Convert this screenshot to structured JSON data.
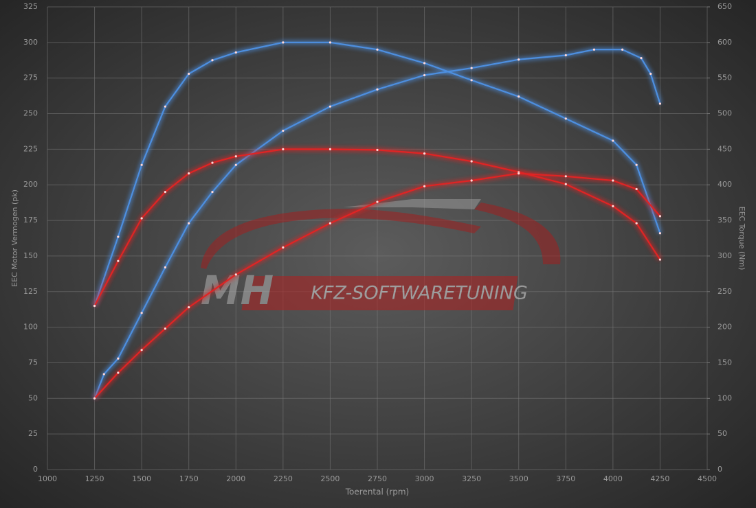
{
  "chart_data": {
    "type": "line",
    "xlabel": "Toerental (rpm)",
    "ylabel": "EEC Motor Vermogen (pk)",
    "y2label": "EEC Torque (Nm)",
    "annotations": [
      "MH",
      "KFZ-SOFTWARETUNING"
    ],
    "xlim": [
      1000,
      4500
    ],
    "xticks": [
      1000,
      1250,
      1500,
      1750,
      2000,
      2250,
      2500,
      2750,
      3000,
      3250,
      3500,
      3750,
      4000,
      4250,
      4500
    ],
    "ylim": [
      0,
      325
    ],
    "yticks": [
      0,
      25,
      50,
      75,
      100,
      125,
      150,
      175,
      200,
      225,
      250,
      275,
      300,
      325
    ],
    "y2lim": [
      0,
      650
    ],
    "y2ticks": [
      0,
      50,
      100,
      150,
      200,
      250,
      300,
      350,
      400,
      450,
      500,
      550,
      600,
      650
    ],
    "grid": true,
    "series": [
      {
        "color": "#4d8fe0",
        "axis": "y2",
        "x": [
          1250,
          1375,
          1500,
          1625,
          1750,
          1875,
          2000,
          2250,
          2500,
          2750,
          3000,
          3250,
          3500,
          3750,
          4000,
          4125,
          4250
        ],
        "values": [
          230,
          327,
          428,
          510,
          556,
          575,
          586,
          600,
          600,
          590,
          571,
          547,
          524,
          493,
          462,
          428,
          332
        ]
      },
      {
        "color": "#4d8fe0",
        "axis": "y",
        "x": [
          1250,
          1300,
          1375,
          1500,
          1625,
          1750,
          1875,
          2000,
          2250,
          2500,
          2750,
          3000,
          3250,
          3500,
          3750,
          3900,
          4050,
          4150,
          4200,
          4250
        ],
        "values": [
          50,
          67,
          78,
          110,
          142,
          173,
          195,
          214,
          238,
          255,
          267,
          277,
          282,
          288,
          291,
          295,
          295,
          289,
          278,
          257
        ]
      },
      {
        "color": "#e02424",
        "axis": "y2",
        "x": [
          1250,
          1375,
          1500,
          1625,
          1750,
          1875,
          2000,
          2250,
          2500,
          2750,
          3000,
          3250,
          3500,
          3750,
          4000,
          4125,
          4250
        ],
        "values": [
          230,
          293,
          353,
          390,
          416,
          431,
          440,
          450,
          450,
          449,
          444,
          433,
          418,
          401,
          370,
          346,
          295
        ]
      },
      {
        "color": "#e02424",
        "axis": "y",
        "x": [
          1250,
          1375,
          1500,
          1625,
          1750,
          2000,
          2250,
          2500,
          2750,
          3000,
          3250,
          3500,
          3750,
          4000,
          4125,
          4250
        ],
        "values": [
          50,
          68,
          84,
          99,
          114,
          137,
          156,
          173,
          188,
          199,
          203,
          208,
          206,
          203,
          197,
          178
        ]
      }
    ]
  }
}
